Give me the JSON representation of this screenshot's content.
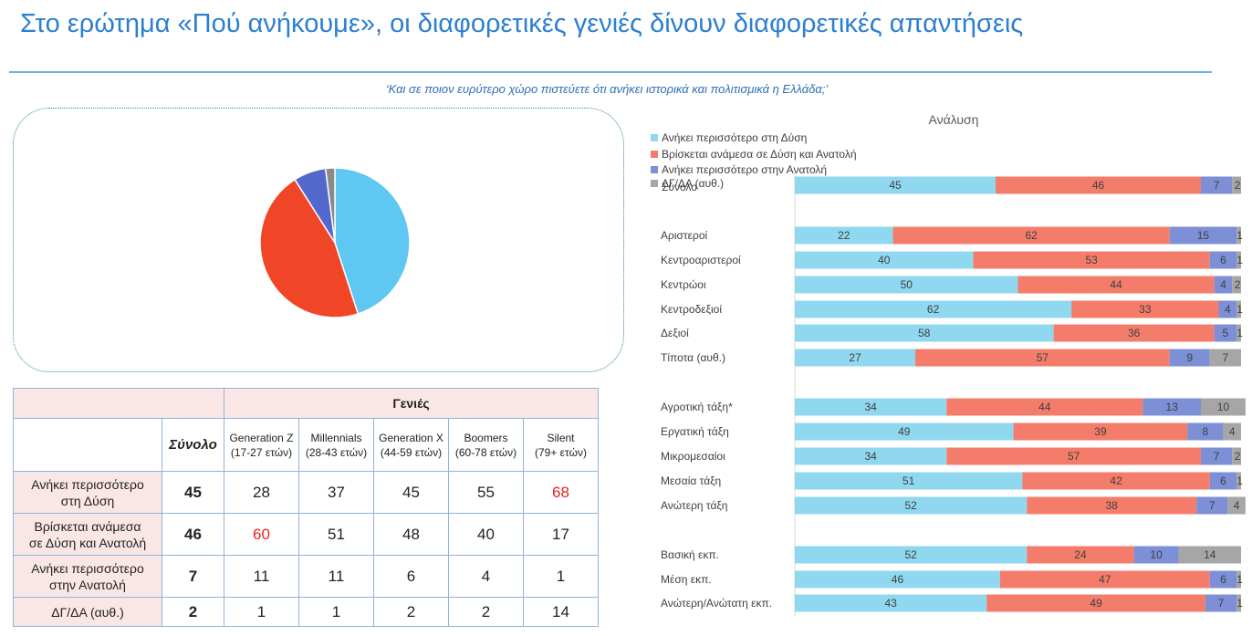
{
  "header": {
    "title": "Στο ερώτημα «Πού ανήκουμε», οι διαφορετικές γενιές δίνουν διαφορετικές απαντήσεις",
    "question": "‘Και σε ποιον ευρύτερο χώρο πιστεύετε ότι ανήκει ιστορικά και πολιτισμικά η Ελλάδα;’"
  },
  "colors": {
    "west": "#8fd8f0",
    "between": "#f47c6a",
    "east": "#7d8fd6",
    "dk": "#a6a6a6",
    "pie_west": "#5fc8f2",
    "pie_between": "#f04527",
    "pie_east": "#5468cc",
    "pie_dk": "#8a8a8a",
    "highlight": "#e8201c"
  },
  "table": {
    "header_group": "Γενιές",
    "total_label": "Σύνολο",
    "columns": [
      {
        "name": "Generation Z",
        "range": "(17-27 ετών)"
      },
      {
        "name": "Millennials",
        "range": "(28-43 ετών)"
      },
      {
        "name": "Generation X",
        "range": "(44-59 ετών)"
      },
      {
        "name": "Boomers",
        "range": "(60-78 ετών)"
      },
      {
        "name": "Silent",
        "range": "(79+ ετών)"
      }
    ],
    "rows": [
      {
        "line1": "Ανήκει περισσότερο",
        "line2": "στη Δύση",
        "total": "45",
        "values": [
          "28",
          "37",
          "45",
          "55",
          "68"
        ]
      },
      {
        "line1": "Βρίσκεται ανάμεσα",
        "line2": "σε Δύση και Ανατολή",
        "total": "46",
        "values": [
          "60",
          "51",
          "48",
          "40",
          "17"
        ]
      },
      {
        "line1": "Ανήκει περισσότερο",
        "line2": "στην Ανατολή",
        "total": "7",
        "values": [
          "11",
          "11",
          "6",
          "4",
          "1"
        ]
      },
      {
        "line1": "ΔΓ/ΔΑ (αυθ.)",
        "line2": "",
        "total": "2",
        "values": [
          "1",
          "1",
          "2",
          "2",
          "14"
        ]
      }
    ]
  },
  "chart_data": [
    {
      "type": "pie",
      "labels": [
        "Ανήκει περισσότερο στη Δύση",
        "Βρίσκεται ανάμεσα σε Δύση και Ανατολή",
        "Ανήκει περισσότερο στην Ανατολή",
        "ΔΓ/ΔΑ (αυθ.)"
      ],
      "values": [
        45,
        46,
        7,
        2
      ]
    },
    {
      "type": "bar",
      "stacked": true,
      "orientation": "horizontal",
      "title": "Ανάλυση",
      "legend_position": "top-left",
      "categories": [
        "Σύνολο",
        "Αριστεροί",
        "Κεντροαριστεροί",
        "Κεντρώοι",
        "Κεντροδεξιοί",
        "Δεξιοί",
        "Τίποτα (αυθ.)",
        "Αγροτική τάξη*",
        "Εργατική τάξη",
        "Μικρομεσαίοι",
        "Μεσαία τάξη",
        "Ανώτερη τάξη",
        "Βασική εκπ.",
        "Μέση εκπ.",
        "Ανώτερη/Ανώτατη εκπ."
      ],
      "category_labels_shown": [
        "",
        "Αριστεροί",
        "Κεντροαριστεροί",
        "Κεντρώοι",
        "Κεντροδεξιοί",
        "Δεξιοί",
        "Τίποτα (αυθ.)",
        "Αγροτική τάξη*",
        "Εργατική τάξη",
        "Μικρομεσαίοι",
        "Μεσαία τάξη",
        "Ανώτερη τάξη",
        "Βασική εκπ.",
        "Μέση εκπ.",
        "Ανώτερη/Ανώτατη εκπ."
      ],
      "groups": [
        [
          0
        ],
        [
          1,
          2,
          3,
          4,
          5,
          6
        ],
        [
          7,
          8,
          9,
          10,
          11
        ],
        [
          12,
          13,
          14
        ]
      ],
      "series": [
        {
          "name": "Ανήκει περισσότερο στη Δύση",
          "values": [
            45,
            22,
            40,
            50,
            62,
            58,
            27,
            34,
            49,
            34,
            51,
            52,
            52,
            46,
            43
          ]
        },
        {
          "name": "Βρίσκεται ανάμεσα σε Δύση και Ανατολή",
          "values": [
            46,
            62,
            53,
            44,
            33,
            36,
            57,
            44,
            39,
            57,
            42,
            38,
            24,
            47,
            49
          ]
        },
        {
          "name": "Ανήκει περισσότερο στην Ανατολή",
          "values": [
            7,
            15,
            6,
            4,
            4,
            5,
            9,
            13,
            8,
            7,
            6,
            7,
            10,
            6,
            7
          ]
        },
        {
          "name": "ΔΓ/ΔΑ (αυθ.)",
          "values": [
            2,
            1,
            1,
            2,
            1,
            1,
            7,
            10,
            4,
            2,
            1,
            4,
            14,
            1,
            1
          ]
        }
      ],
      "legend_extra": [
        "Σύνολο"
      ],
      "xlim": [
        0,
        100
      ]
    }
  ]
}
